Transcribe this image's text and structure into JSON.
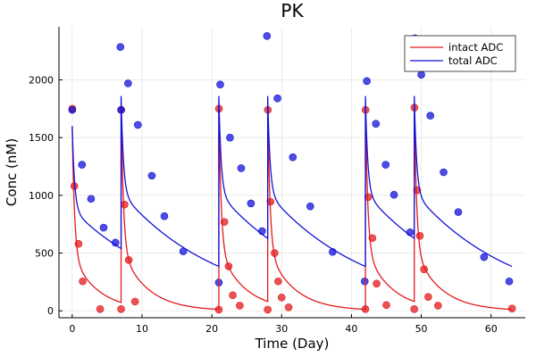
{
  "chart_data": {
    "type": "line",
    "title": "PK",
    "xlabel": "Time (Day)",
    "ylabel": "Conc (nM)",
    "xlim": [
      -1.9,
      64.9
    ],
    "ylim": [
      -60,
      2460
    ],
    "xticks": [
      0,
      10,
      20,
      30,
      40,
      50,
      60
    ],
    "yticks": [
      0,
      500,
      1000,
      1500,
      2000
    ],
    "grid": true,
    "legend_position": "top-right",
    "doses": [
      0,
      7,
      21,
      28,
      42,
      49
    ],
    "series": [
      {
        "name": "intact ADC",
        "kind": "line",
        "color": "#e31a1c",
        "peak_first": 1600,
        "peak": 1780,
        "fast_amp_frac": 0.7,
        "fast_rate": 3.0,
        "slow_rate": 0.27
      },
      {
        "name": "total ADC",
        "kind": "line",
        "color": "#1212d8",
        "peak_first": 1600,
        "peak": 1860,
        "fast_amp_frac": 0.45,
        "fast_rate": 3.0,
        "slow_rate": 0.07
      },
      {
        "name": "intact ADC observed",
        "kind": "scatter",
        "color": "#e31a1c",
        "points": [
          [
            0.02,
            1750
          ],
          [
            0.3,
            1080
          ],
          [
            0.9,
            580
          ],
          [
            1.5,
            255
          ],
          [
            4,
            15
          ],
          [
            7,
            15
          ],
          [
            7.02,
            1740
          ],
          [
            7.5,
            920
          ],
          [
            8.1,
            440
          ],
          [
            9,
            80
          ],
          [
            21,
            10
          ],
          [
            21.02,
            1750
          ],
          [
            21.8,
            770
          ],
          [
            22.4,
            385
          ],
          [
            23,
            135
          ],
          [
            24,
            45
          ],
          [
            28,
            10
          ],
          [
            28.02,
            1740
          ],
          [
            28.4,
            945
          ],
          [
            29,
            500
          ],
          [
            29.5,
            255
          ],
          [
            30,
            115
          ],
          [
            31,
            30
          ],
          [
            42,
            15
          ],
          [
            42.02,
            1740
          ],
          [
            42.4,
            985
          ],
          [
            43,
            630
          ],
          [
            43.6,
            235
          ],
          [
            45,
            50
          ],
          [
            49,
            15
          ],
          [
            49.02,
            1760
          ],
          [
            49.4,
            1045
          ],
          [
            49.8,
            650
          ],
          [
            50.4,
            360
          ],
          [
            51,
            120
          ],
          [
            52.4,
            45
          ],
          [
            63,
            20
          ]
        ]
      },
      {
        "name": "total ADC observed",
        "kind": "scatter",
        "color": "#1212d8",
        "points": [
          [
            0,
            1740
          ],
          [
            1.4,
            1265
          ],
          [
            2.7,
            970
          ],
          [
            4.5,
            720
          ],
          [
            6.2,
            590
          ],
          [
            6.9,
            2285
          ],
          [
            7,
            1740
          ],
          [
            8,
            1970
          ],
          [
            9.4,
            1610
          ],
          [
            11.4,
            1170
          ],
          [
            13.2,
            820
          ],
          [
            15.9,
            515
          ],
          [
            21,
            245
          ],
          [
            21.2,
            1960
          ],
          [
            22.6,
            1500
          ],
          [
            24.2,
            1235
          ],
          [
            25.6,
            930
          ],
          [
            27.2,
            690
          ],
          [
            27.9,
            2380
          ],
          [
            29.4,
            1840
          ],
          [
            31.6,
            1330
          ],
          [
            34.1,
            905
          ],
          [
            37.3,
            510
          ],
          [
            41.9,
            255
          ],
          [
            42.2,
            1990
          ],
          [
            43.5,
            1620
          ],
          [
            44.9,
            1265
          ],
          [
            46.1,
            1005
          ],
          [
            48.4,
            680
          ],
          [
            49.1,
            2360
          ],
          [
            50,
            2045
          ],
          [
            51.3,
            1690
          ],
          [
            53.2,
            1200
          ],
          [
            55.3,
            855
          ],
          [
            59,
            465
          ],
          [
            62.6,
            255
          ]
        ]
      }
    ]
  }
}
